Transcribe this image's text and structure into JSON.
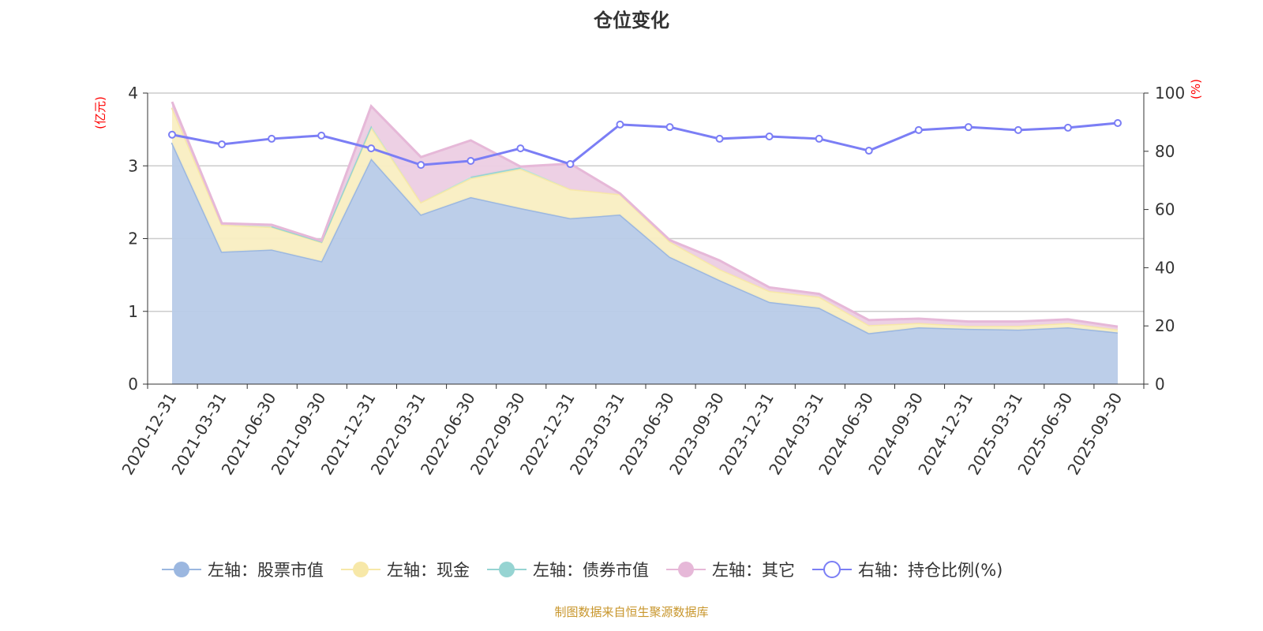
{
  "chart_data": {
    "type": "area",
    "title": "仓位变化",
    "source_note": "制图数据来自恒生聚源数据库",
    "left_axis": {
      "label": "(亿元)",
      "ylim": [
        0,
        4
      ],
      "ticks": [
        "0",
        "1",
        "2",
        "3",
        "4"
      ]
    },
    "right_axis": {
      "label": "(%)",
      "ylim": [
        0,
        100
      ],
      "ticks": [
        "0",
        "20",
        "40",
        "60",
        "80",
        "100"
      ]
    },
    "categories": [
      "2020-12-31",
      "2021-03-31",
      "2021-06-30",
      "2021-09-30",
      "2021-12-31",
      "2022-03-31",
      "2022-06-30",
      "2022-09-30",
      "2022-12-31",
      "2023-03-31",
      "2023-06-30",
      "2023-09-30",
      "2023-12-31",
      "2024-03-31",
      "2024-06-30",
      "2024-09-30",
      "2024-12-31",
      "2025-03-31",
      "2025-06-30",
      "2025-09-30"
    ],
    "series": [
      {
        "name": "左轴：股票市值",
        "axis": "left",
        "stack": true,
        "color": "#9bb7e0",
        "fill": "#b8cbe8",
        "values": [
          3.32,
          1.82,
          1.85,
          1.69,
          3.1,
          2.33,
          2.57,
          2.42,
          2.28,
          2.33,
          1.75,
          1.43,
          1.13,
          1.05,
          0.7,
          0.78,
          0.76,
          0.75,
          0.78,
          0.71
        ]
      },
      {
        "name": "左轴：现金",
        "axis": "left",
        "stack": true,
        "color": "#f7e8a8",
        "fill": "#f9eec2",
        "values": [
          0.48,
          0.37,
          0.31,
          0.26,
          0.43,
          0.17,
          0.26,
          0.54,
          0.4,
          0.28,
          0.21,
          0.15,
          0.15,
          0.15,
          0.11,
          0.06,
          0.04,
          0.05,
          0.06,
          0.04
        ]
      },
      {
        "name": "左轴：债券市值",
        "axis": "left",
        "stack": true,
        "color": "#96d4d2",
        "fill": "#b6e2e0",
        "values": [
          null,
          null,
          0.01,
          0.01,
          0.02,
          null,
          0.02,
          0.02,
          null,
          null,
          null,
          null,
          null,
          null,
          null,
          null,
          null,
          null,
          null,
          null
        ]
      },
      {
        "name": "左轴：其它",
        "axis": "left",
        "stack": true,
        "color": "#e6b8d8",
        "fill": "#eccde3",
        "values": [
          0.08,
          0.02,
          0.02,
          0.01,
          0.27,
          0.62,
          0.5,
          0.01,
          0.35,
          0.01,
          0.02,
          0.12,
          0.05,
          0.04,
          0.07,
          0.06,
          0.06,
          0.06,
          0.05,
          0.04
        ]
      },
      {
        "name": "右轴：持仓比例(%)",
        "axis": "right",
        "stack": false,
        "color": "#7b7ef5",
        "values": [
          85.7,
          82.4,
          84.3,
          85.4,
          81.0,
          75.3,
          76.7,
          81.0,
          75.6,
          89.2,
          88.3,
          84.3,
          85.1,
          84.3,
          80.2,
          87.3,
          88.3,
          87.3,
          88.1,
          89.7
        ]
      }
    ],
    "grid": true,
    "legend_position": "bottom"
  }
}
